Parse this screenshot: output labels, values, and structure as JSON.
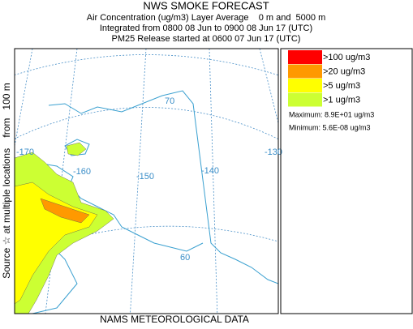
{
  "header": {
    "title": "NWS SMOKE FORECAST",
    "lines": [
      "Air Concentration (ug/m3) Layer Average    0 m and  5000 m",
      "Integrated from 0800 08 Jun to 0900 08 Jun 17 (UTC)",
      "PM25 Release started at 0600 07 Jun 17 (UTC)"
    ]
  },
  "side_label": "Source ☆ at multiple locations    from   100 m",
  "map": {
    "lon_labels": [
      "-170",
      "-160",
      "-150",
      "-140",
      "-130"
    ],
    "lat_labels": [
      "70",
      "60"
    ]
  },
  "legend": {
    "items": [
      {
        "label": ">100 ug/m3",
        "color": "#ff0000"
      },
      {
        "label": ">20 ug/m3",
        "color": "#ff9900"
      },
      {
        "label": ">5 ug/m3",
        "color": "#ffff00"
      },
      {
        "label": ">1 ug/m3",
        "color": "#ccff33"
      }
    ],
    "maximum": "Maximum: 8.9E+01 ug/m3",
    "minimum": "Minimum: 5.6E-08 ug/m3"
  },
  "footer": "NAMS METEOROLOGICAL DATA"
}
